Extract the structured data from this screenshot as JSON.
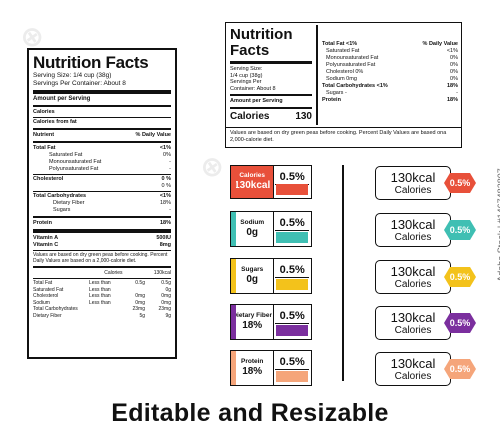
{
  "label1": {
    "title": "Nutrition Facts",
    "serving_size": "Serving Size: 1/4 cup (38g)",
    "servings_per_container": "Servings Per Container: About 8",
    "amount_per_serving": "Amount per Serving",
    "calories": "Calories",
    "calories_from_fat": "Calories from fat",
    "nutrient_header": "Nutrient",
    "daily_value_header": "% Daily Value",
    "total_fat": "Total Fat",
    "total_fat_dv": "<1%",
    "saturated_fat": "Saturated Fat",
    "saturated_fat_dv": "0%",
    "monounsaturated_fat": "Monounsaturated Fat",
    "monounsaturated_fat_dv": "-",
    "polyunsaturated_fat": "Polyunsaturated Fat",
    "polyunsaturated_fat_dv": "-",
    "cholesterol": "Cholesterol",
    "cholesterol_dv": "0 %",
    "sodium_dv": "0 %",
    "total_carbs": "Total Carbohydrates",
    "total_carbs_dv": "<1%",
    "dietary_fiber": "Dietary Fiber",
    "dietary_fiber_dv": "18%",
    "sugars": "Sugars",
    "sugars_dv": "-",
    "protein": "Protein",
    "protein_dv": "18%",
    "vitamin_a": "Vitamin A",
    "vitamin_a_val": "500IU",
    "vitamin_c": "Vitamin C",
    "vitamin_c_val": "8mg",
    "footnote": "Values are based on dry green peas before cooking. Percent Daily Values are based on a 2,000-calorie diet.",
    "table_calories": "Calories",
    "table_kcal": "130kcal",
    "table_rows": [
      {
        "name": "Total Fat",
        "cmp": "Less than",
        "v1": "0.5g",
        "v2": "0.5g"
      },
      {
        "name": "Saturated Fat",
        "cmp": "Less than",
        "v1": "",
        "v2": "0g"
      },
      {
        "name": "Cholesterol",
        "cmp": "Less than",
        "v1": "0mg",
        "v2": "0mg"
      },
      {
        "name": "Sodium",
        "cmp": "Less than",
        "v1": "0mg",
        "v2": "0mg"
      },
      {
        "name": "Total Carbohydrates",
        "cmp": "",
        "v1": "23mg",
        "v2": "23mg"
      },
      {
        "name": "Dietary Fiber",
        "cmp": "",
        "v1": "5g",
        "v2": "9g"
      }
    ]
  },
  "label2": {
    "title_line1": "Nutrition",
    "title_line2": "Facts",
    "serving_size": "Serving Size:",
    "serving_size_val": "1/4 cup (38g)",
    "servings_per": "Servings Per",
    "container": "Container: About 8",
    "amount_per_serving": "Amount per Serving",
    "calories": "Calories",
    "calories_val": "130",
    "total_fat": "Total Fat <1%",
    "dv_header": "% Daily Value",
    "rows": [
      {
        "name": "Saturated Fat",
        "dv": "<1%"
      },
      {
        "name": "Monounsaturated Fat",
        "dv": "0%"
      },
      {
        "name": "Polyunsaturated Fat",
        "dv": "0%"
      },
      {
        "name": "Cholesterol 0%",
        "dv": "0%"
      },
      {
        "name": "Sodium  0mg",
        "dv": "0%"
      }
    ],
    "total_carbs": "Total Carbohydrates <1%",
    "total_carbs_dv": "18%",
    "sugars": "Sugars -",
    "sugars_dv": "-",
    "protein": "Protein",
    "protein_dv": "18%",
    "footnote": "Values are based on dry green peas before cooking. Percent Daily Values are based ona 2,000-calorie diet."
  },
  "mini_boxes": [
    {
      "label": "Calories",
      "value": "130kcal",
      "pct": "0.5%",
      "color": "#e8503a"
    },
    {
      "label": "Sodium",
      "value": "0g",
      "pct": "0.5%",
      "color": "#3fbfb3"
    },
    {
      "label": "Sugars",
      "value": "0g",
      "pct": "0.5%",
      "color": "#f3c21b"
    },
    {
      "label": "Dietary Fiber",
      "value": "18%",
      "pct": "0.5%",
      "color": "#7b2f9e"
    },
    {
      "label": "Protein",
      "value": "18%",
      "pct": "0.5%",
      "color": "#f5a57a"
    }
  ],
  "tags": [
    {
      "value": "130kcal",
      "label": "Calories",
      "pct": "0.5%",
      "color": "#e8503a"
    },
    {
      "value": "130kcal",
      "label": "Calories",
      "pct": "0.5%",
      "color": "#3fbfb3"
    },
    {
      "value": "130kcal",
      "label": "Calories",
      "pct": "0.5%",
      "color": "#f3c21b"
    },
    {
      "value": "130kcal",
      "label": "Calories",
      "pct": "0.5%",
      "color": "#7b2f9e"
    },
    {
      "value": "130kcal",
      "label": "Calories",
      "pct": "0.5%",
      "color": "#f5a57a"
    }
  ],
  "footer": "Editable and Resizable",
  "stock_id": "Adobe Stock | #1467483807",
  "watermark": "Adobe Stock"
}
